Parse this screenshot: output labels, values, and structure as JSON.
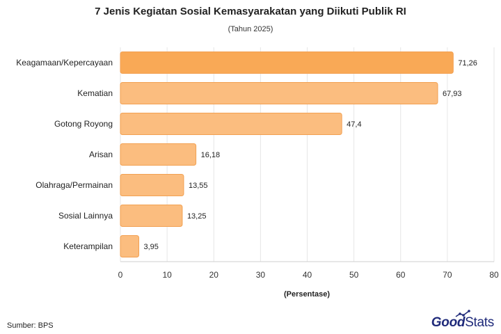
{
  "chart_data": {
    "type": "bar",
    "orientation": "horizontal",
    "title": "7 Jenis Kegiatan Sosial Kemasyarakatan yang Diikuti Publik RI",
    "subtitle": "(Tahun 2025)",
    "xlabel": "(Persentase)",
    "ylabel": "",
    "categories": [
      "Keagamaan/Kepercayaan",
      "Kematian",
      "Gotong Royong",
      "Arisan",
      "Olahraga/Permainan",
      "Sosial Lainnya",
      "Keterampilan"
    ],
    "values": [
      71.26,
      67.93,
      47.4,
      16.18,
      13.55,
      13.25,
      3.95
    ],
    "value_labels": [
      "71,26",
      "67,93",
      "47,4",
      "16,18",
      "13,55",
      "13,25",
      "3,95"
    ],
    "xlim": [
      0,
      80
    ],
    "xticks": [
      "0",
      "10",
      "20",
      "30",
      "40",
      "50",
      "60",
      "70",
      "80"
    ],
    "grid": "vertical",
    "highlight_color": "#f9a956",
    "bar_color": "#fbbd7f",
    "bar_stroke": "#f2a051"
  },
  "footer": {
    "source": "Sumber: BPS",
    "brand_good": "Good",
    "brand_stats": "Stats"
  },
  "brand_icon": "chart-trend-icon"
}
